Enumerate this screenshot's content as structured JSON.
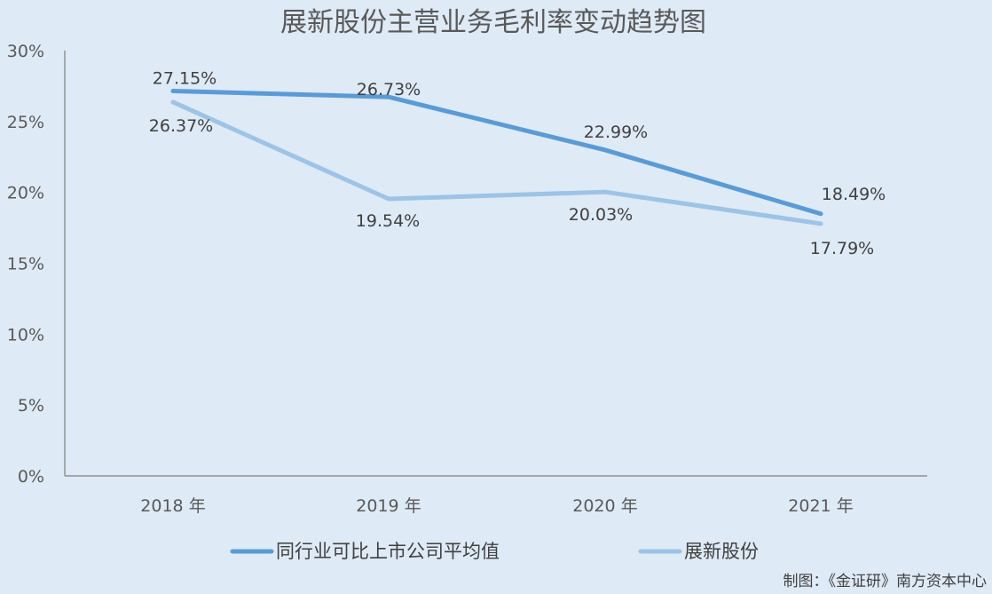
{
  "chart_data": {
    "type": "line",
    "title": "展新股份主营业务毛利率变动趋势图",
    "categories": [
      "2018 年",
      "2019 年",
      "2020 年",
      "2021 年"
    ],
    "ylim": [
      0,
      30
    ],
    "yticks": [
      "0%",
      "5%",
      "10%",
      "15%",
      "20%",
      "25%",
      "30%"
    ],
    "grid": false,
    "legend": "bottom",
    "series": [
      {
        "name": "同行业可比上市公司平均值",
        "values": [
          27.15,
          26.73,
          22.99,
          18.49
        ],
        "labels": [
          "27.15%",
          "26.73%",
          "22.99%",
          "18.49%"
        ],
        "color": "#5b9bd5"
      },
      {
        "name": "展新股份",
        "values": [
          26.37,
          19.54,
          20.03,
          17.79
        ],
        "labels": [
          "26.37%",
          "19.54%",
          "20.03%",
          "17.79%"
        ],
        "color": "#9dc3e6"
      }
    ],
    "source": "制图：《金证研》南方资本中心"
  }
}
